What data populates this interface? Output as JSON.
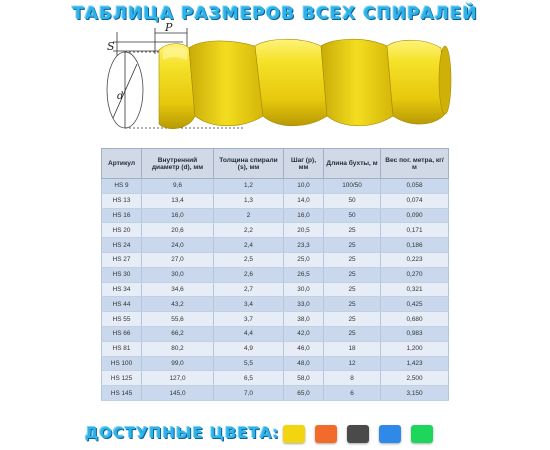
{
  "header": {
    "title": "ТАБЛИЦА РАЗМЕРОВ ВСЕХ СПИРАЛЕЙ"
  },
  "diagram": {
    "label_s": "S",
    "label_p": "P",
    "label_d": "d",
    "spiral_color": "#f2df1e"
  },
  "table": {
    "columns": [
      "Артикул",
      "Внутренний диаметр (d), мм",
      "Толщина спирали (s), мм",
      "Шаг (p), мм",
      "Длина бухты, м",
      "Вес пог. метра, кг/м"
    ],
    "rows": [
      [
        "HS 9",
        "9,6",
        "1,2",
        "10,0",
        "100/50",
        "0,058"
      ],
      [
        "HS 13",
        "13,4",
        "1,3",
        "14,0",
        "50",
        "0,074"
      ],
      [
        "HS 16",
        "16,0",
        "2",
        "16,0",
        "50",
        "0,090"
      ],
      [
        "HS 20",
        "20,6",
        "2,2",
        "20,5",
        "25",
        "0,171"
      ],
      [
        "HS 24",
        "24,0",
        "2,4",
        "23,3",
        "25",
        "0,186"
      ],
      [
        "HS 27",
        "27,0",
        "2,5",
        "25,0",
        "25",
        "0,223"
      ],
      [
        "HS 30",
        "30,0",
        "2,6",
        "26,5",
        "25",
        "0,270"
      ],
      [
        "HS 34",
        "34,6",
        "2,7",
        "30,0",
        "25",
        "0,321"
      ],
      [
        "HS 44",
        "43,2",
        "3,4",
        "33,0",
        "25",
        "0,425"
      ],
      [
        "HS 55",
        "55,6",
        "3,7",
        "38,0",
        "25",
        "0,680"
      ],
      [
        "HS 66",
        "66,2",
        "4,4",
        "42,0",
        "25",
        "0,983"
      ],
      [
        "HS 81",
        "80,2",
        "4,9",
        "46,0",
        "18",
        "1,200"
      ],
      [
        "HS 100",
        "99,0",
        "5,5",
        "48,0",
        "12",
        "1,423"
      ],
      [
        "HS 125",
        "127,0",
        "6,5",
        "58,0",
        "8",
        "2,500"
      ],
      [
        "HS 145",
        "145,0",
        "7,0",
        "65,0",
        "6",
        "3,150"
      ]
    ]
  },
  "colors_section": {
    "label": "ДОСТУПНЫЕ ЦВЕТА:",
    "swatches": [
      {
        "name": "yellow-swatch",
        "color": "#f2d411"
      },
      {
        "name": "orange-swatch",
        "color": "#f26b2a"
      },
      {
        "name": "gray-swatch",
        "color": "#4a4a4a"
      },
      {
        "name": "blue-swatch",
        "color": "#2e8ae6"
      },
      {
        "name": "green-swatch",
        "color": "#1fd65c"
      }
    ]
  }
}
